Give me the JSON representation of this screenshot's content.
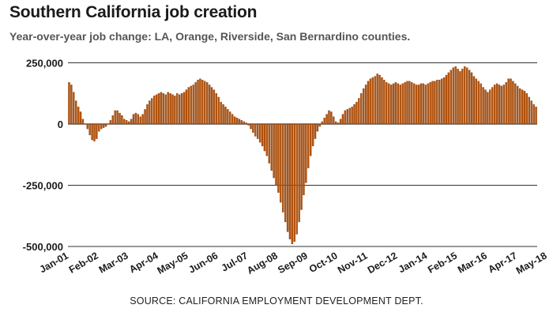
{
  "chart_data": {
    "type": "bar",
    "title": "Southern California job creation",
    "subtitle": "Year-over-year job change: LA, Orange, Riverside, San Bernardino counties.",
    "source": "SOURCE: CALIFORNIA EMPLOYMENT DEVELOPMENT DEPT.",
    "bar_color": "#b5540d",
    "bar_edge_color": "#7a3506",
    "grid_color": "#333333",
    "ylim": [
      -500000,
      270000
    ],
    "yticks": [
      {
        "value": 250000,
        "label": "250,000"
      },
      {
        "value": 0,
        "label": "0"
      },
      {
        "value": -250000,
        "label": "-250,000"
      },
      {
        "value": -500000,
        "label": "-500,000"
      }
    ],
    "xticks": [
      {
        "index": 0,
        "label": "Jan-01"
      },
      {
        "index": 13,
        "label": "Feb-02"
      },
      {
        "index": 26,
        "label": "Mar-03"
      },
      {
        "index": 39,
        "label": "Apr-04"
      },
      {
        "index": 52,
        "label": "May-05"
      },
      {
        "index": 65,
        "label": "Jun-06"
      },
      {
        "index": 78,
        "label": "Jul-07"
      },
      {
        "index": 91,
        "label": "Aug-08"
      },
      {
        "index": 104,
        "label": "Sep-09"
      },
      {
        "index": 117,
        "label": "Oct-10"
      },
      {
        "index": 130,
        "label": "Nov-11"
      },
      {
        "index": 143,
        "label": "Dec-12"
      },
      {
        "index": 156,
        "label": "Jan-14"
      },
      {
        "index": 169,
        "label": "Feb-15"
      },
      {
        "index": 182,
        "label": "Mar-16"
      },
      {
        "index": 195,
        "label": "Apr-17"
      },
      {
        "index": 208,
        "label": "May-18"
      }
    ],
    "values": [
      170000,
      160000,
      130000,
      95000,
      70000,
      50000,
      20000,
      0,
      -20000,
      -45000,
      -65000,
      -70000,
      -60000,
      -30000,
      -20000,
      -15000,
      -10000,
      0,
      15000,
      35000,
      55000,
      55000,
      45000,
      35000,
      20000,
      15000,
      10000,
      20000,
      40000,
      45000,
      40000,
      30000,
      40000,
      60000,
      80000,
      95000,
      105000,
      115000,
      120000,
      125000,
      130000,
      125000,
      120000,
      130000,
      125000,
      120000,
      115000,
      125000,
      120000,
      125000,
      130000,
      140000,
      150000,
      155000,
      160000,
      170000,
      180000,
      185000,
      180000,
      175000,
      170000,
      160000,
      150000,
      140000,
      125000,
      110000,
      90000,
      80000,
      70000,
      60000,
      50000,
      40000,
      30000,
      25000,
      20000,
      15000,
      10000,
      5000,
      -5000,
      -20000,
      -35000,
      -50000,
      -60000,
      -75000,
      -90000,
      -110000,
      -130000,
      -160000,
      -190000,
      -220000,
      -250000,
      -280000,
      -320000,
      -360000,
      -400000,
      -440000,
      -470000,
      -490000,
      -480000,
      -450000,
      -400000,
      -350000,
      -290000,
      -240000,
      -180000,
      -130000,
      -90000,
      -60000,
      -30000,
      -10000,
      10000,
      25000,
      40000,
      55000,
      50000,
      30000,
      10000,
      5000,
      20000,
      40000,
      55000,
      60000,
      65000,
      70000,
      80000,
      90000,
      105000,
      125000,
      145000,
      160000,
      175000,
      185000,
      190000,
      195000,
      205000,
      200000,
      190000,
      180000,
      170000,
      165000,
      160000,
      165000,
      170000,
      165000,
      160000,
      165000,
      170000,
      175000,
      175000,
      170000,
      165000,
      160000,
      160000,
      165000,
      165000,
      160000,
      165000,
      170000,
      175000,
      175000,
      180000,
      180000,
      185000,
      190000,
      200000,
      210000,
      220000,
      230000,
      235000,
      225000,
      215000,
      225000,
      235000,
      230000,
      220000,
      210000,
      195000,
      185000,
      175000,
      165000,
      150000,
      140000,
      130000,
      140000,
      150000,
      160000,
      165000,
      160000,
      155000,
      160000,
      170000,
      185000,
      185000,
      175000,
      165000,
      155000,
      145000,
      140000,
      135000,
      125000,
      110000,
      95000,
      80000,
      70000
    ]
  }
}
